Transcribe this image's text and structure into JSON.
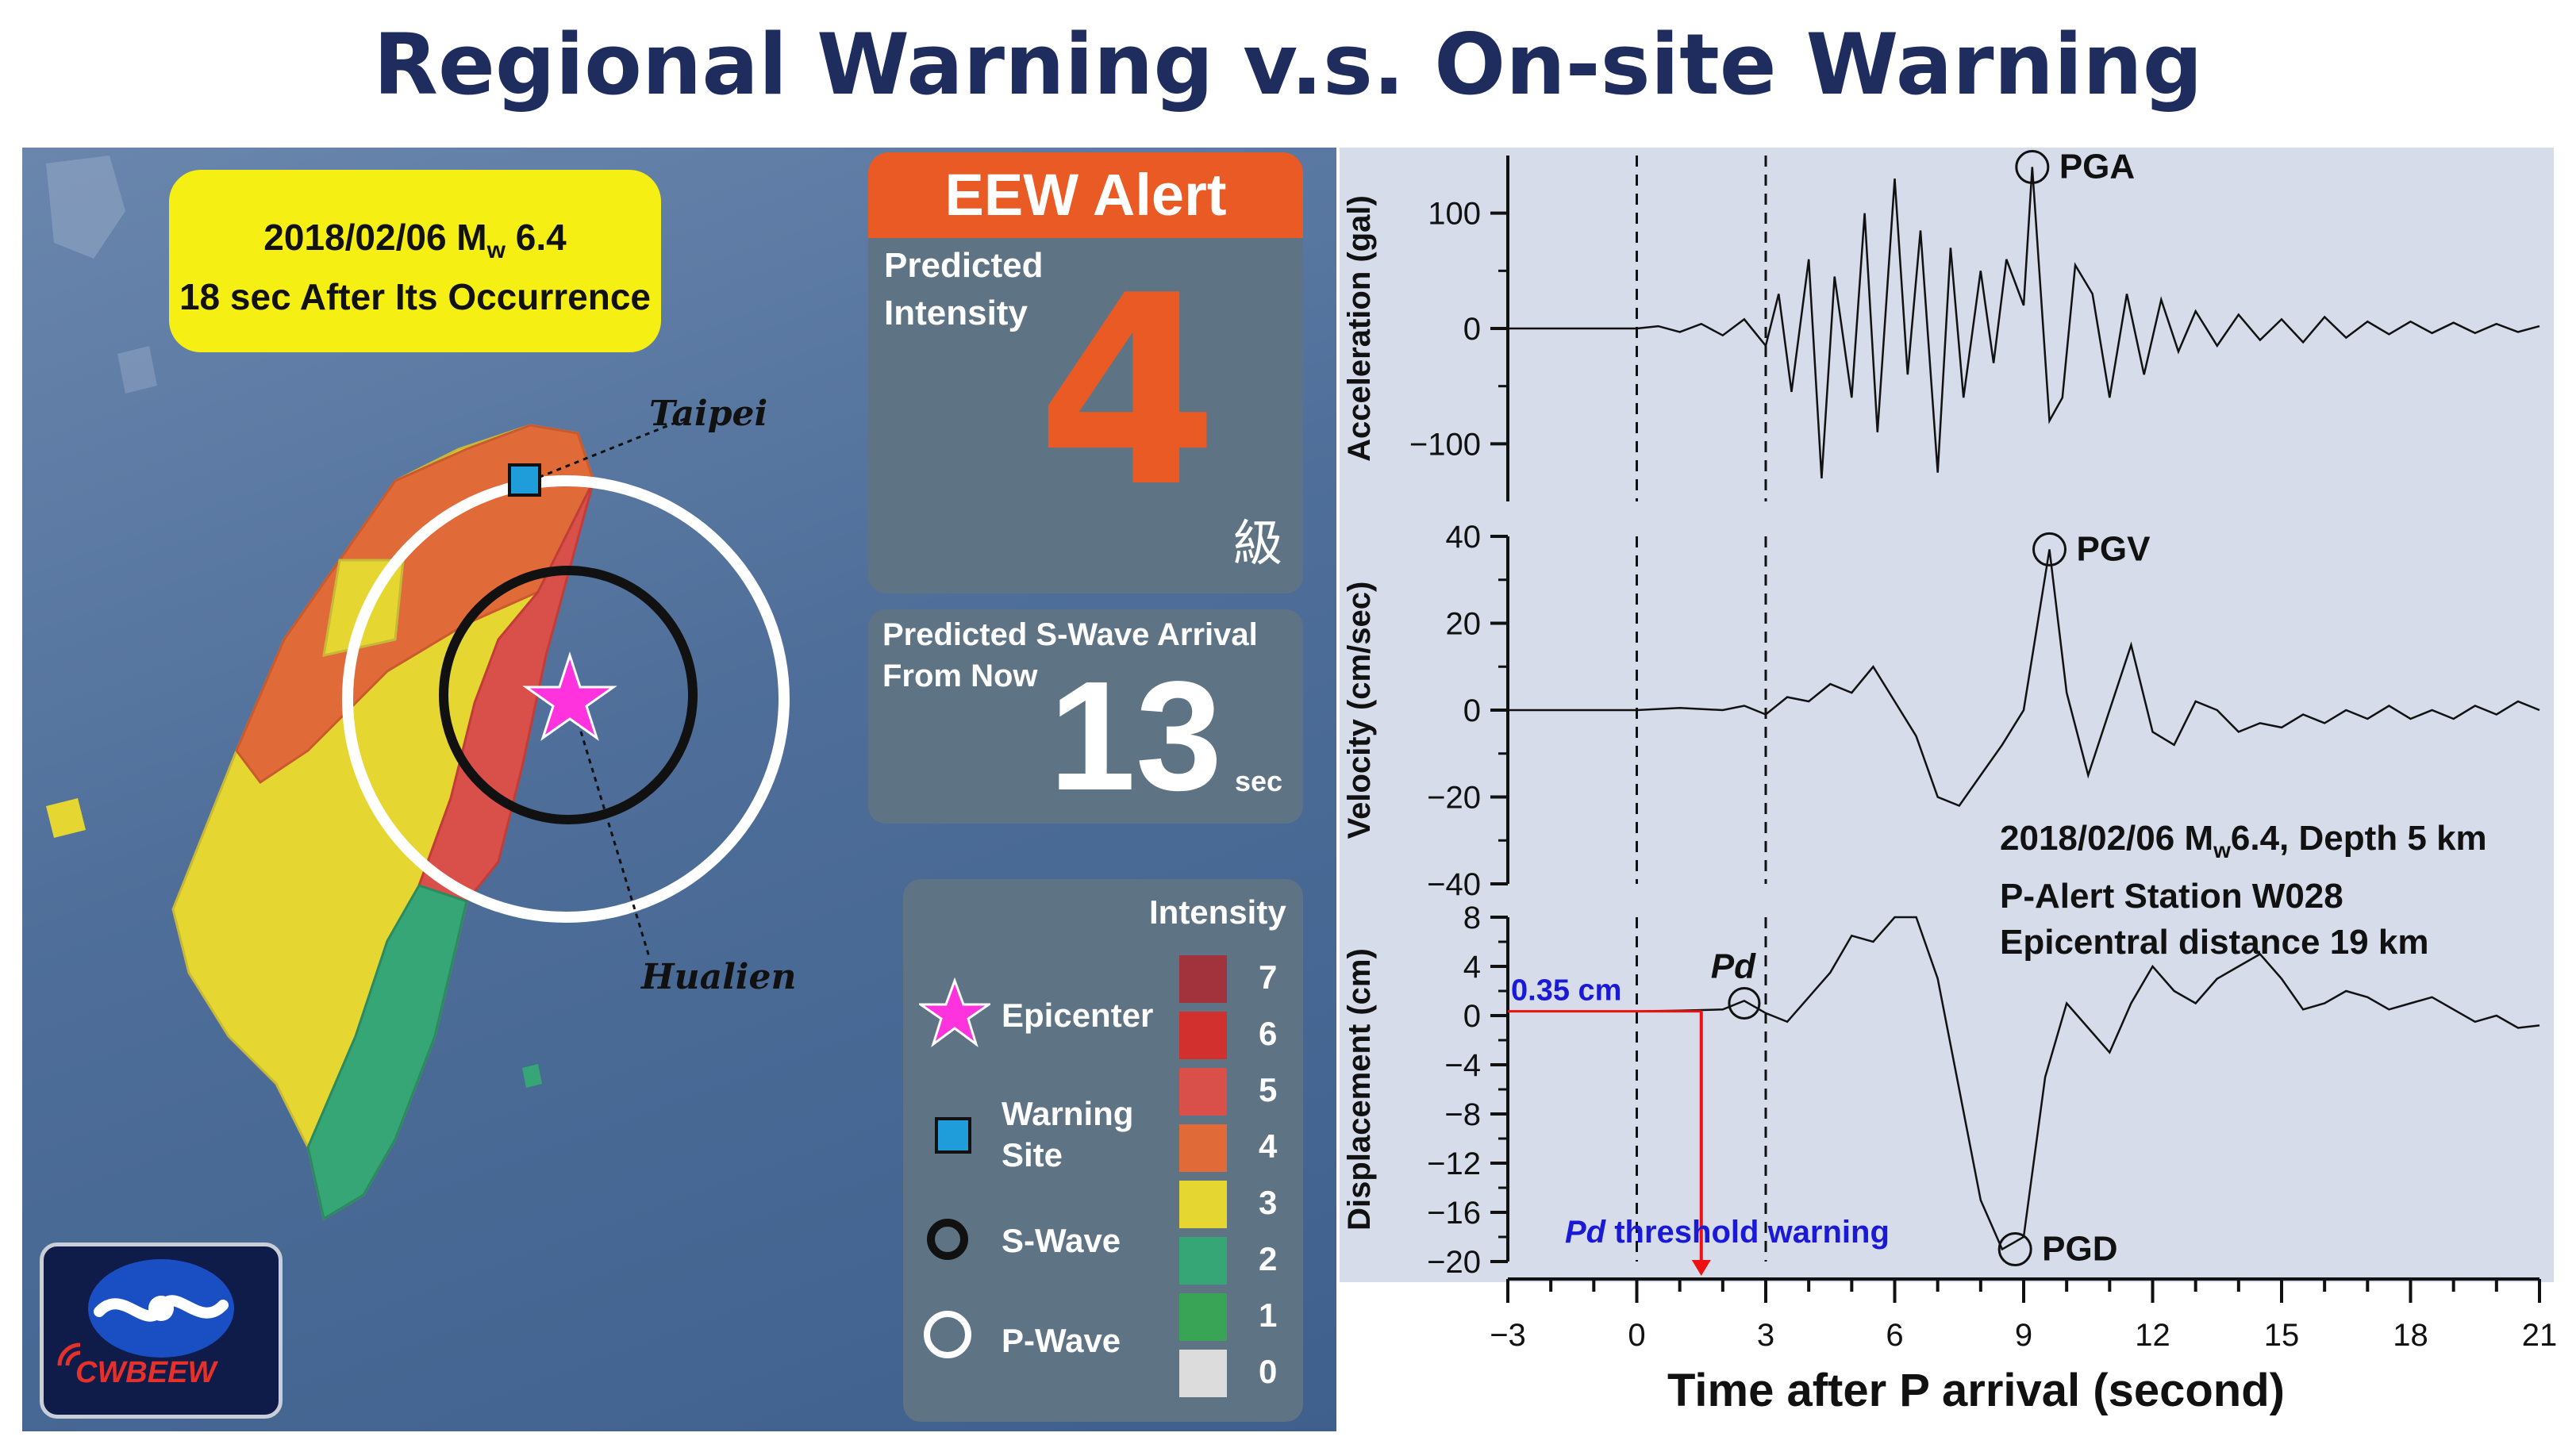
{
  "title": "Regional Warning v.s. On-site Warning",
  "map": {
    "date_line1": "2018/02/06 M",
    "date_line1_sub": "w",
    "date_line1_end": " 6.4",
    "date_line2": "18 sec After Its Occurrence",
    "city_taipei": "Taipei",
    "city_hualien": "Hualien",
    "alert_header": "EEW Alert",
    "predicted_intensity_label1": "Predicted",
    "predicted_intensity_label2": "Intensity",
    "predicted_intensity_value": "4",
    "intensity_unit": "級",
    "s_wave_label1": "Predicted S-Wave Arrival",
    "s_wave_label2": "From Now",
    "s_wave_value": "13",
    "s_wave_unit": "sec",
    "logo_text": "CWBEEW",
    "legend": {
      "title": "Intensity",
      "epicenter": "Epicenter",
      "warning_site1": "Warning",
      "warning_site2": "Site",
      "s_wave": "S-Wave",
      "p_wave": "P-Wave",
      "levels": [
        "7",
        "6",
        "5",
        "4",
        "3",
        "2",
        "1",
        "0"
      ],
      "level_colors": [
        "#a2323c",
        "#d22f2f",
        "#d9504a",
        "#e06b39",
        "#e6d631",
        "#36a677",
        "#3aa456",
        "#dcdcdc"
      ]
    },
    "colors": {
      "epicenter": "#ff33dd",
      "warning_site": "#1f9ddb",
      "s_wave": "#111111",
      "p_wave": "#ffffff"
    }
  },
  "chart_data": [
    {
      "type": "line",
      "ylabel": "Acceleration (gal)",
      "yticks": [
        100,
        0,
        -100
      ],
      "ylim": [
        -150,
        150
      ],
      "xlim": [
        -3,
        21
      ],
      "annotation": "PGA",
      "peak": {
        "x": 9.2,
        "y": 140
      },
      "x": [
        -3,
        0,
        0.5,
        1,
        1.5,
        2,
        2.5,
        3,
        3.3,
        3.6,
        4,
        4.3,
        4.6,
        5,
        5.3,
        5.6,
        6,
        6.3,
        6.6,
        7,
        7.3,
        7.6,
        8,
        8.3,
        8.6,
        9,
        9.2,
        9.4,
        9.6,
        9.9,
        10.2,
        10.6,
        11,
        11.4,
        11.8,
        12.2,
        12.6,
        13,
        13.5,
        14,
        14.5,
        15,
        15.5,
        16,
        16.5,
        17,
        17.5,
        18,
        18.5,
        19,
        19.5,
        20,
        20.5,
        21
      ],
      "y": [
        0,
        0,
        2,
        -3,
        4,
        -6,
        8,
        -15,
        30,
        -55,
        60,
        -130,
        45,
        -60,
        100,
        -90,
        130,
        -40,
        85,
        -125,
        70,
        -60,
        50,
        -30,
        60,
        20,
        140,
        30,
        -80,
        -60,
        55,
        30,
        -60,
        30,
        -40,
        25,
        -20,
        15,
        -15,
        12,
        -10,
        8,
        -12,
        10,
        -8,
        6,
        -5,
        6,
        -4,
        5,
        -4,
        4,
        -3,
        2
      ]
    },
    {
      "type": "line",
      "ylabel": "Velocity (cm/sec)",
      "yticks": [
        40,
        20,
        0,
        -20,
        -40
      ],
      "ylim": [
        -40,
        40
      ],
      "xlim": [
        -3,
        21
      ],
      "annotation": "PGV",
      "peak": {
        "x": 9.6,
        "y": 37
      },
      "x": [
        -3,
        0,
        1,
        2,
        2.5,
        3,
        3.5,
        4,
        4.5,
        5,
        5.5,
        6,
        6.5,
        7,
        7.5,
        8,
        8.5,
        9,
        9.6,
        10,
        10.5,
        11,
        11.5,
        12,
        12.5,
        13,
        13.5,
        14,
        14.5,
        15,
        15.5,
        16,
        16.5,
        17,
        17.5,
        18,
        18.5,
        19,
        19.5,
        20,
        20.5,
        21
      ],
      "y": [
        0,
        0,
        0.5,
        0,
        1,
        -1,
        3,
        2,
        6,
        4,
        10,
        2,
        -6,
        -20,
        -22,
        -15,
        -8,
        0,
        37,
        4,
        -15,
        0,
        15,
        -5,
        -8,
        2,
        0,
        -5,
        -3,
        -4,
        -1,
        -3,
        0,
        -2,
        1,
        -2,
        0,
        -2,
        1,
        -1,
        2,
        0
      ]
    },
    {
      "type": "line",
      "ylabel": "Displacement (cm)",
      "xlabel": "Time after P arrival (second)",
      "yticks": [
        8,
        4,
        0,
        -4,
        -8,
        -12,
        -16,
        -20
      ],
      "ylim": [
        -20,
        8
      ],
      "xticks": [
        -3,
        0,
        3,
        6,
        9,
        12,
        15,
        18,
        21
      ],
      "xlim": [
        -3,
        21
      ],
      "annotation": "PGD",
      "annotation_pd": "Pd",
      "peak": {
        "x": 8.8,
        "y": -19
      },
      "pd_value_label": "0.35 cm",
      "pd_threshold_label": "threshold warning",
      "pd_threshold_label_italic": "Pd",
      "pd_threshold_x": 1.5,
      "info_line1": "2018/02/06 M",
      "info_line1_sub": "w",
      "info_line1_end": "6.4, Depth 5 km",
      "info_line2": "P-Alert Station W028",
      "info_line3": "Epicentral distance 19 km",
      "x": [
        -3,
        0,
        1,
        2,
        2.5,
        3,
        3.5,
        4,
        4.5,
        5,
        5.5,
        6,
        6.5,
        7,
        7.5,
        8,
        8.5,
        9,
        9.5,
        10,
        10.5,
        11,
        11.5,
        12,
        12.5,
        13,
        13.5,
        14,
        14.5,
        15,
        15.5,
        16,
        16.5,
        17,
        17.5,
        18,
        18.5,
        19,
        19.5,
        20,
        20.5,
        21
      ],
      "y": [
        0.35,
        0.35,
        0.4,
        0.5,
        1.2,
        0.2,
        -0.5,
        1.5,
        3.5,
        6.5,
        6,
        8,
        8,
        3,
        -6,
        -15,
        -19,
        -18,
        -5,
        1,
        -1,
        -3,
        1,
        4,
        2,
        1,
        3,
        4,
        5,
        3,
        0.5,
        1,
        2,
        1.5,
        0.5,
        1,
        1.5,
        0.5,
        -0.5,
        0,
        -1,
        -0.8
      ]
    }
  ]
}
